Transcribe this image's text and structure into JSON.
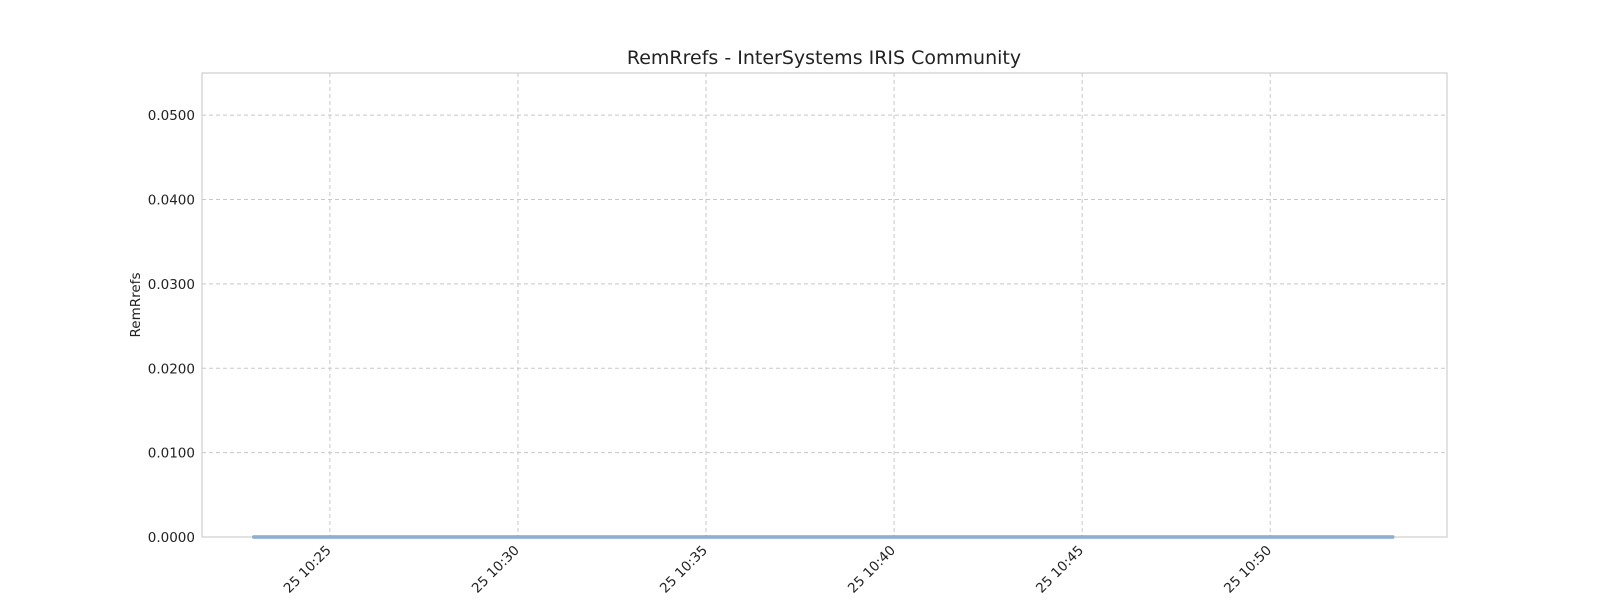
{
  "chart_data": {
    "type": "line",
    "title": "RemRrefs - InterSystems IRIS Community",
    "xlabel": "",
    "ylabel": "RemRrefs",
    "x_tick_labels": [
      "25 10:25",
      "25 10:30",
      "25 10:35",
      "25 10:40",
      "25 10:45",
      "25 10:50"
    ],
    "y_tick_labels": [
      "0.0000",
      "0.0100",
      "0.0200",
      "0.0300",
      "0.0400",
      "0.0500"
    ],
    "ylim": [
      0,
      0.055
    ],
    "xlim_minutes": [
      "10:21:36",
      "10:54:42"
    ],
    "grid": true,
    "legend": "none",
    "series": [
      {
        "color": "#3a7cc1",
        "x": [
          "10:22:58",
          "10:53:16"
        ],
        "values": [
          0,
          0
        ]
      }
    ]
  }
}
